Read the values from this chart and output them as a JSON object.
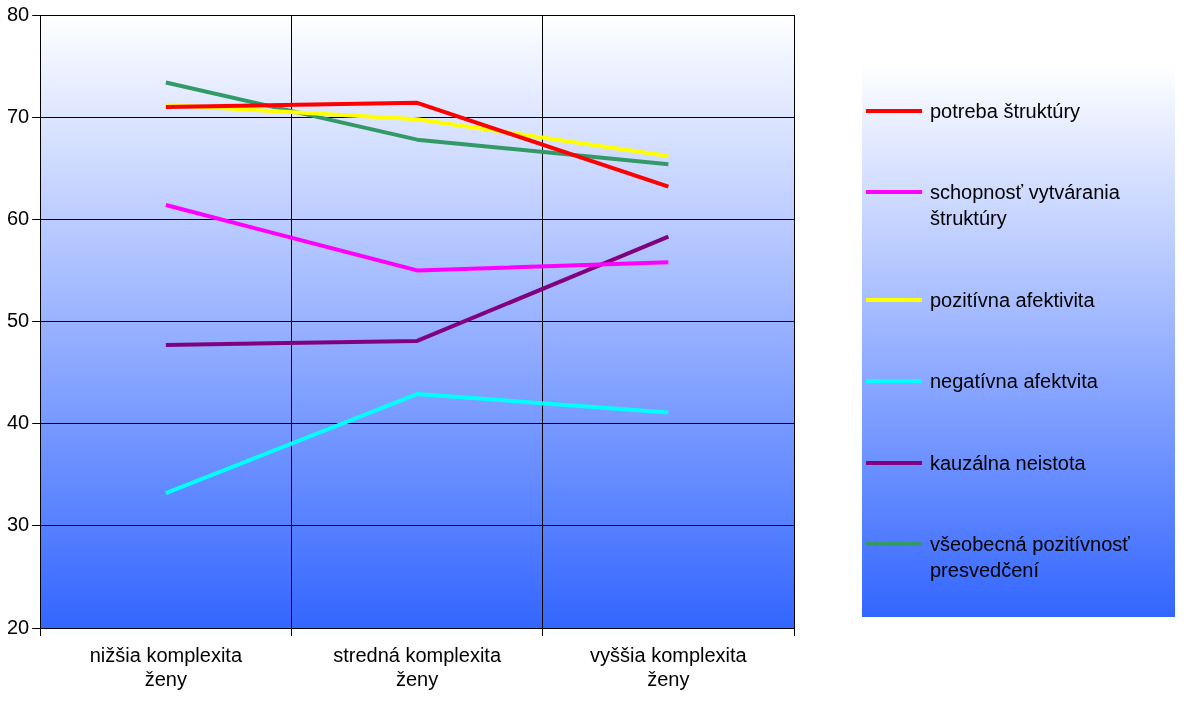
{
  "chart_data": {
    "type": "line",
    "categories": [
      "nižšia komplexita ženy",
      "stredná komplexita ženy",
      "vyššia komplexita ženy"
    ],
    "series": [
      {
        "name": "potreba štruktúry",
        "color": "#ff0000",
        "values": [
          71.0,
          71.4,
          63.2
        ]
      },
      {
        "name": "schopnosť vytvárania štruktúry",
        "color": "#ff00ff",
        "values": [
          61.4,
          55.0,
          55.8
        ]
      },
      {
        "name": "pozitívna afektivita",
        "color": "#ffff00",
        "values": [
          71.2,
          69.8,
          66.2
        ]
      },
      {
        "name": "negatívna afektvita",
        "color": "#00ffff",
        "values": [
          33.2,
          42.9,
          41.1
        ]
      },
      {
        "name": "kauzálna neistota",
        "color": "#800080",
        "values": [
          47.7,
          48.1,
          58.3
        ]
      },
      {
        "name": "všeobecná pozitívnosť presvedčení",
        "color": "#339966",
        "values": [
          73.4,
          67.8,
          65.4
        ]
      }
    ],
    "ylim": [
      20,
      80
    ],
    "yticks": [
      20,
      30,
      40,
      50,
      60,
      70,
      80
    ],
    "grid": true,
    "legend": "right",
    "marker": "none",
    "line_style": "solid"
  }
}
